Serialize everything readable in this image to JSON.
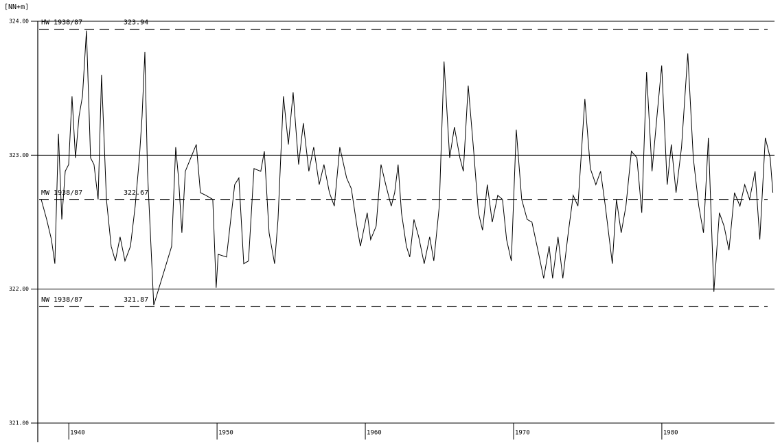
{
  "chart_data": {
    "type": "line",
    "y_axis_label": "[NN+m]",
    "color": "#000000",
    "grid": true,
    "xlim": [
      1938,
      1987.6
    ],
    "ylim": [
      321,
      324
    ],
    "xticks": [
      1940,
      1950,
      1960,
      1970,
      1980
    ],
    "yticks": [
      {
        "value": 321,
        "label": "321.00"
      },
      {
        "value": 322,
        "label": "322.00"
      },
      {
        "value": 323,
        "label": "323.00"
      },
      {
        "value": 324,
        "label": "324.00"
      }
    ],
    "reference_lines": [
      {
        "label": "HW 1938/87",
        "value": 323.94
      },
      {
        "label": "MW 1938/87",
        "value": 322.67
      },
      {
        "label": "NW 1938/87",
        "value": 321.87
      }
    ],
    "x": [
      1938.14,
      1938.51,
      1938.83,
      1939.06,
      1939.3,
      1939.53,
      1939.76,
      1939.99,
      1940.22,
      1940.45,
      1940.69,
      1940.92,
      1941.19,
      1941.47,
      1941.7,
      1941.98,
      1942.21,
      1942.54,
      1942.86,
      1943.14,
      1943.46,
      1943.79,
      1944.16,
      1944.48,
      1944.76,
      1944.94,
      1945.13,
      1945.31,
      1945.73,
      1946.94,
      1947.21,
      1947.4,
      1947.63,
      1947.86,
      1948.23,
      1948.6,
      1948.88,
      1949.25,
      1949.71,
      1949.94,
      1950.08,
      1950.64,
      1951.19,
      1951.47,
      1951.8,
      1952.12,
      1952.49,
      1952.95,
      1953.19,
      1953.51,
      1953.88,
      1954.11,
      1954.48,
      1954.81,
      1955.13,
      1955.5,
      1955.82,
      1956.19,
      1956.52,
      1956.89,
      1957.21,
      1957.58,
      1957.91,
      1958.28,
      1958.74,
      1959.06,
      1959.44,
      1959.67,
      1960.13,
      1960.36,
      1960.73,
      1961.06,
      1961.38,
      1961.75,
      1961.98,
      1962.21,
      1962.44,
      1962.77,
      1963.0,
      1963.28,
      1963.6,
      1963.97,
      1964.34,
      1964.62,
      1964.99,
      1965.31,
      1965.69,
      1966.01,
      1966.38,
      1966.61,
      1966.94,
      1967.31,
      1967.63,
      1967.91,
      1968.23,
      1968.56,
      1968.93,
      1969.25,
      1969.53,
      1969.85,
      1970.18,
      1970.55,
      1970.92,
      1971.24,
      1971.7,
      1972.03,
      1972.4,
      1972.63,
      1973.0,
      1973.32,
      1973.69,
      1974.02,
      1974.34,
      1974.81,
      1975.18,
      1975.55,
      1975.87,
      1976.19,
      1976.66,
      1976.94,
      1977.26,
      1977.58,
      1977.95,
      1978.32,
      1978.65,
      1978.97,
      1979.34,
      1979.67,
      1979.99,
      1980.36,
      1980.64,
      1980.96,
      1981.33,
      1981.75,
      1982.12,
      1982.49,
      1982.81,
      1983.14,
      1983.51,
      1983.88,
      1984.2,
      1984.53,
      1984.9,
      1985.27,
      1985.59,
      1985.92,
      1986.29,
      1986.61,
      1986.98,
      1987.31,
      1987.49
    ],
    "values": [
      322.67,
      322.52,
      322.37,
      322.19,
      323.16,
      322.52,
      322.88,
      322.93,
      323.44,
      322.98,
      323.29,
      323.44,
      323.93,
      322.98,
      322.93,
      322.67,
      323.6,
      322.67,
      322.32,
      322.21,
      322.39,
      322.21,
      322.32,
      322.62,
      322.98,
      323.29,
      323.77,
      322.88,
      321.88,
      322.32,
      323.06,
      322.83,
      322.42,
      322.88,
      322.98,
      323.08,
      322.72,
      322.7,
      322.67,
      322.01,
      322.26,
      322.24,
      322.78,
      322.83,
      322.19,
      322.21,
      322.9,
      322.88,
      323.03,
      322.42,
      322.19,
      322.52,
      323.44,
      323.08,
      323.47,
      322.93,
      323.24,
      322.88,
      323.06,
      322.78,
      322.93,
      322.72,
      322.62,
      323.06,
      322.83,
      322.75,
      322.47,
      322.32,
      322.57,
      322.37,
      322.47,
      322.93,
      322.78,
      322.62,
      322.72,
      322.93,
      322.57,
      322.32,
      322.24,
      322.52,
      322.39,
      322.19,
      322.39,
      322.21,
      322.62,
      323.7,
      322.98,
      323.21,
      322.98,
      322.88,
      323.52,
      323.03,
      322.57,
      322.44,
      322.78,
      322.5,
      322.7,
      322.67,
      322.37,
      322.21,
      323.19,
      322.67,
      322.52,
      322.5,
      322.26,
      322.08,
      322.32,
      322.08,
      322.39,
      322.08,
      322.42,
      322.7,
      322.62,
      323.42,
      322.9,
      322.78,
      322.88,
      322.62,
      322.19,
      322.67,
      322.42,
      322.62,
      323.03,
      322.98,
      322.57,
      323.62,
      322.88,
      323.29,
      323.67,
      322.78,
      323.08,
      322.72,
      323.06,
      323.76,
      322.98,
      322.62,
      322.42,
      323.13,
      321.98,
      322.57,
      322.47,
      322.29,
      322.72,
      322.62,
      322.78,
      322.67,
      322.88,
      322.37,
      323.13,
      322.98,
      322.72
    ]
  }
}
